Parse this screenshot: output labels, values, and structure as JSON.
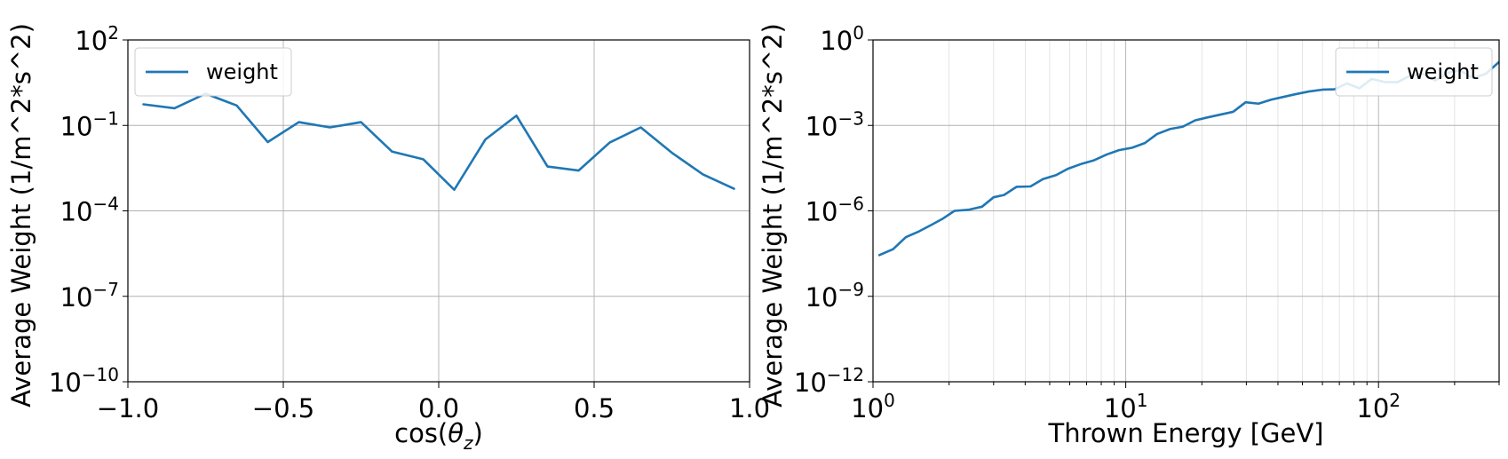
{
  "chart_data": [
    {
      "type": "line",
      "xlabel": "cos(θz)",
      "ylabel": "Average Weight (1/m^2*s^2)",
      "xscale": "linear",
      "yscale": "log",
      "xlim": [
        -1.0,
        1.0
      ],
      "ylim_exp": [
        -10,
        2
      ],
      "xticks": [
        -1.0,
        -0.5,
        0.0,
        0.5,
        1.0
      ],
      "xtick_labels": [
        "−1.0",
        "−0.5",
        "0.0",
        "0.5",
        "1.0"
      ],
      "ytick_exps": [
        -10,
        -7,
        -4,
        -1,
        2
      ],
      "ytick_base": "10",
      "grid": true,
      "legend_loc": "upper left",
      "color": "#1f77b4",
      "series": [
        {
          "name": "weight",
          "x": [
            -0.95,
            -0.85,
            -0.75,
            -0.65,
            -0.55,
            -0.45,
            -0.35,
            -0.25,
            -0.15,
            -0.05,
            0.05,
            0.15,
            0.25,
            0.35,
            0.45,
            0.55,
            0.65,
            0.75,
            0.85,
            0.95
          ],
          "y": [
            0.55,
            0.4,
            1.3,
            0.5,
            0.026,
            0.13,
            0.085,
            0.13,
            0.012,
            0.0065,
            0.00055,
            0.032,
            0.22,
            0.0036,
            0.0026,
            0.025,
            0.085,
            0.011,
            0.0019,
            0.0006
          ]
        }
      ]
    },
    {
      "type": "line",
      "xlabel": "Thrown Energy [GeV]",
      "ylabel": "Average Weight (1/m^2*s^2)",
      "xscale": "log",
      "yscale": "log",
      "xlim": [
        1,
        300
      ],
      "ylim_exp": [
        -12,
        0
      ],
      "xtick_exps": [
        0,
        1,
        2
      ],
      "xtick_base": "10",
      "ytick_exps": [
        -12,
        -9,
        -6,
        -3,
        0
      ],
      "ytick_base": "10",
      "grid": true,
      "legend_loc": "upper right",
      "color": "#1f77b4",
      "series": [
        {
          "name": "weight",
          "x": [
            1.06,
            1.2,
            1.35,
            1.52,
            1.7,
            1.9,
            2.1,
            2.4,
            2.7,
            3.0,
            3.3,
            3.7,
            4.2,
            4.7,
            5.3,
            5.9,
            6.7,
            7.5,
            8.4,
            9.4,
            10.6,
            11.9,
            13.3,
            15,
            16.8,
            18.8,
            21,
            23.7,
            26.6,
            29.8,
            33.5,
            37.6,
            42,
            47,
            53,
            60,
            67,
            75,
            84,
            94,
            106,
            119,
            133,
            150,
            168,
            188,
            210,
            237,
            266,
            300
          ],
          "y": [
            2.8e-08,
            4.5e-08,
            1.2e-07,
            1.9e-07,
            3.2e-07,
            5.5e-07,
            1e-06,
            1.1e-06,
            1.4e-06,
            3e-06,
            3.6e-06,
            7e-06,
            7.2e-06,
            1.3e-05,
            1.8e-05,
            3e-05,
            4.5e-05,
            6e-05,
            9.5e-05,
            0.000135,
            0.000165,
            0.00024,
            0.0005,
            0.00075,
            0.0009,
            0.0015,
            0.0019,
            0.0024,
            0.003,
            0.0065,
            0.0058,
            0.008,
            0.01,
            0.0125,
            0.0155,
            0.018,
            0.0185,
            0.03,
            0.02,
            0.043,
            0.033,
            0.033,
            0.055,
            0.065,
            0.038,
            0.07,
            0.085,
            0.046,
            0.065,
            0.17
          ]
        }
      ]
    }
  ]
}
